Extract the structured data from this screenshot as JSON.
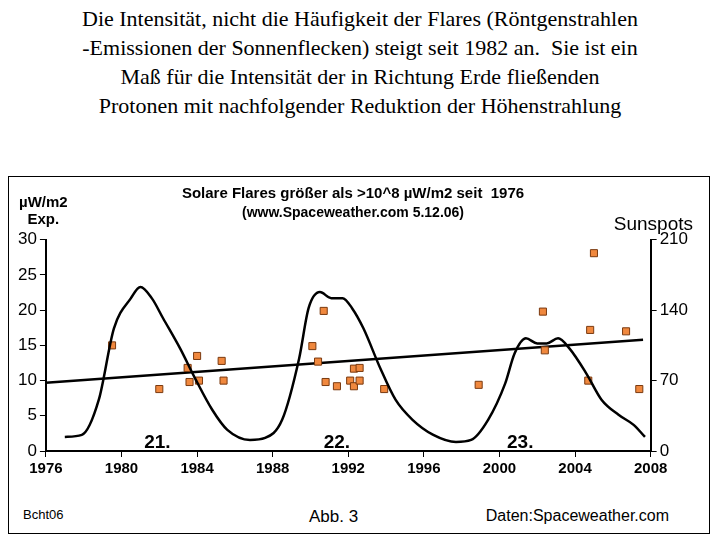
{
  "caption": [
    "Die Intensität, nicht die Häufigkeit der Flares (Röntgenstrahlen",
    "-Emissionen der Sonnenflecken) steigt seit 1982 an.  Sie ist ein",
    "Maß für die Intensität der in Richtung Erde fließenden",
    "Protonen mit nachfolgender Reduktion der Höhenstrahlung"
  ],
  "chart_data": {
    "type": "line",
    "title": "Solare Flares größer als >10^8 µW/m2 seit  1976",
    "subtitle": "(www.Spaceweather.com 5.12.06)",
    "ylabel": [
      "µW/m2",
      "Exp."
    ],
    "y2label": "Sunspots",
    "xlim": [
      1976,
      2008
    ],
    "xticks": [
      1976,
      1980,
      1984,
      1988,
      1992,
      1996,
      2000,
      2004,
      2008
    ],
    "ylim": [
      0,
      30
    ],
    "yticks": [
      0,
      5,
      10,
      15,
      20,
      25,
      30
    ],
    "y2lim": [
      0,
      210
    ],
    "y2ticks": [
      0,
      70,
      140,
      210
    ],
    "grid": false,
    "series": [
      {
        "type": "line",
        "color": "#000000",
        "marker": "none",
        "axis": "y2",
        "x": [
          1977.0,
          1977.9,
          1978.8,
          1979.6,
          1980.5,
          1981.0,
          1981.6,
          1982.2,
          1983.1,
          1983.9,
          1984.8,
          1985.6,
          1986.8,
          1987.6,
          1988.5,
          1989.4,
          1989.9,
          1990.5,
          1991.1,
          1991.7,
          1992.2,
          1992.8,
          1993.7,
          1994.5,
          1995.4,
          1996.5,
          1997.7,
          1998.5,
          1999.4,
          2000.3,
          2000.8,
          2001.4,
          2002.0,
          2002.5,
          2003.1,
          2003.7,
          2004.6,
          2005.4,
          2006.3,
          2007.1,
          2007.7
        ],
        "values": [
          14,
          16,
          51,
          122,
          152,
          163,
          152,
          132,
          102,
          72,
          41,
          21,
          11,
          13,
          31,
          92,
          142,
          158,
          152,
          152,
          142,
          122,
          82,
          51,
          31,
          16,
          9,
          11,
          31,
          67,
          97,
          112,
          107,
          107,
          112,
          102,
          77,
          51,
          36,
          26,
          14
        ]
      },
      {
        "type": "scatter",
        "color": "#f0883e",
        "marker": "square",
        "x": [
          1979.5,
          1982.0,
          1983.5,
          1984.0,
          1983.6,
          1984.1,
          1985.3,
          1985.4,
          1990.1,
          1990.7,
          1990.4,
          1990.8,
          1991.4,
          1992.1,
          1992.3,
          1992.3,
          1992.6,
          1992.6,
          1993.9,
          1998.9,
          2002.3,
          2002.4,
          2005.0,
          2004.8,
          2004.7,
          2006.7,
          2007.4
        ],
        "values": [
          15,
          8.8,
          11.8,
          13.5,
          9.8,
          10,
          12.8,
          10,
          14.9,
          19.9,
          12.7,
          9.8,
          9.2,
          10,
          11.7,
          9.2,
          11.8,
          10,
          8.8,
          9.4,
          19.8,
          14.3,
          28.1,
          17.2,
          10,
          17,
          8.8
        ]
      },
      {
        "type": "line",
        "color": "#000000",
        "marker": "none",
        "x": [
          1976,
          2007.6
        ],
        "values": [
          9.7,
          15.8
        ]
      }
    ],
    "annotations": [
      {
        "text": "21.",
        "x": 1981.9,
        "y": 1.2
      },
      {
        "text": "22.",
        "x": 1991.4,
        "y": 1.2
      },
      {
        "text": "23.",
        "x": 2001.1,
        "y": 1.2
      }
    ]
  },
  "footer": {
    "left": "Bcht06",
    "center": "Abb. 3",
    "right": "Daten:Spaceweather.com"
  }
}
